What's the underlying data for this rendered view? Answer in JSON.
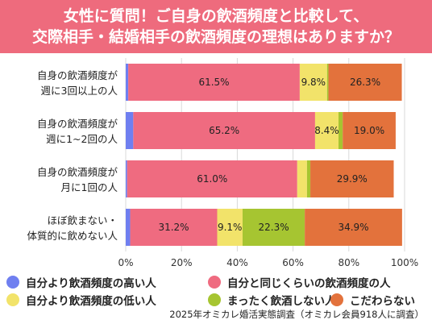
{
  "title": {
    "line1": "女性に質問！ご自身の飲酒頻度と比較して、",
    "line2": "交際相手・結婚相手の飲酒頻度の理想はありますか？"
  },
  "colors": {
    "title_bg": "#ee6b7d",
    "higher": "#6f7ff0",
    "same": "#ef6b80",
    "lower": "#f2e36a",
    "no_drink": "#a6c531",
    "no_pref": "#e3723c",
    "grid": "#d9d9d9"
  },
  "chart_data": {
    "type": "bar",
    "orientation": "horizontal",
    "stacked": true,
    "categories": [
      [
        "自身の飲酒頻度が",
        "週に3回以上の人"
      ],
      [
        "自身の飲酒頻度が",
        "週に1~2回の人"
      ],
      [
        "自身の飲酒頻度が",
        "月に1回の人"
      ],
      [
        "ほぼ飲まない・",
        "体質的に飲めない人"
      ]
    ],
    "series": [
      {
        "name": "自分より飲酒頻度の高い人",
        "color": "#6f7ff0",
        "values": [
          0.9,
          2.7,
          0.5,
          1.6
        ],
        "labels": [
          "",
          "",
          "",
          ""
        ]
      },
      {
        "name": "自分と同じくらいの飲酒頻度の人",
        "color": "#ef6b80",
        "values": [
          61.5,
          65.2,
          61.0,
          31.2
        ],
        "labels": [
          "61.5%",
          "65.2%",
          "61.0%",
          "31.2%"
        ]
      },
      {
        "name": "自分より飲酒頻度の低い人",
        "color": "#f2e36a",
        "values": [
          9.8,
          8.4,
          3.5,
          9.1
        ],
        "labels": [
          "9.8%",
          "8.4%",
          "",
          "9.1%"
        ]
      },
      {
        "name": "まったく飲酒しない人",
        "color": "#a6c531",
        "values": [
          0.5,
          1.5,
          1.2,
          22.3
        ],
        "labels": [
          "",
          "",
          "",
          "22.3%"
        ]
      },
      {
        "name": "こだわらない",
        "color": "#e3723c",
        "values": [
          26.3,
          19.0,
          29.9,
          34.9
        ],
        "labels": [
          "26.3%",
          "19.0%",
          "29.9%",
          "34.9%"
        ]
      }
    ],
    "x_ticks": [
      "0%",
      "20%",
      "40%",
      "60%",
      "80%",
      "100%"
    ],
    "xlim": [
      0,
      100
    ],
    "grid": true,
    "legend_position": "bottom"
  },
  "legend": {
    "items": [
      {
        "label": "自分より飲酒頻度の高い人",
        "color": "#6f7ff0"
      },
      {
        "label": "自分と同じくらいの飲酒頻度の人",
        "color": "#ef6b80"
      },
      {
        "label": "自分より飲酒頻度の低い人",
        "color": "#f2e36a"
      },
      {
        "label": "まったく飲酒しない人",
        "color": "#a6c531"
      },
      {
        "label": "こだわらない",
        "color": "#e3723c"
      }
    ]
  },
  "source": "2025年オミカレ婚活実態調査（オミカレ会員918人に調査）"
}
